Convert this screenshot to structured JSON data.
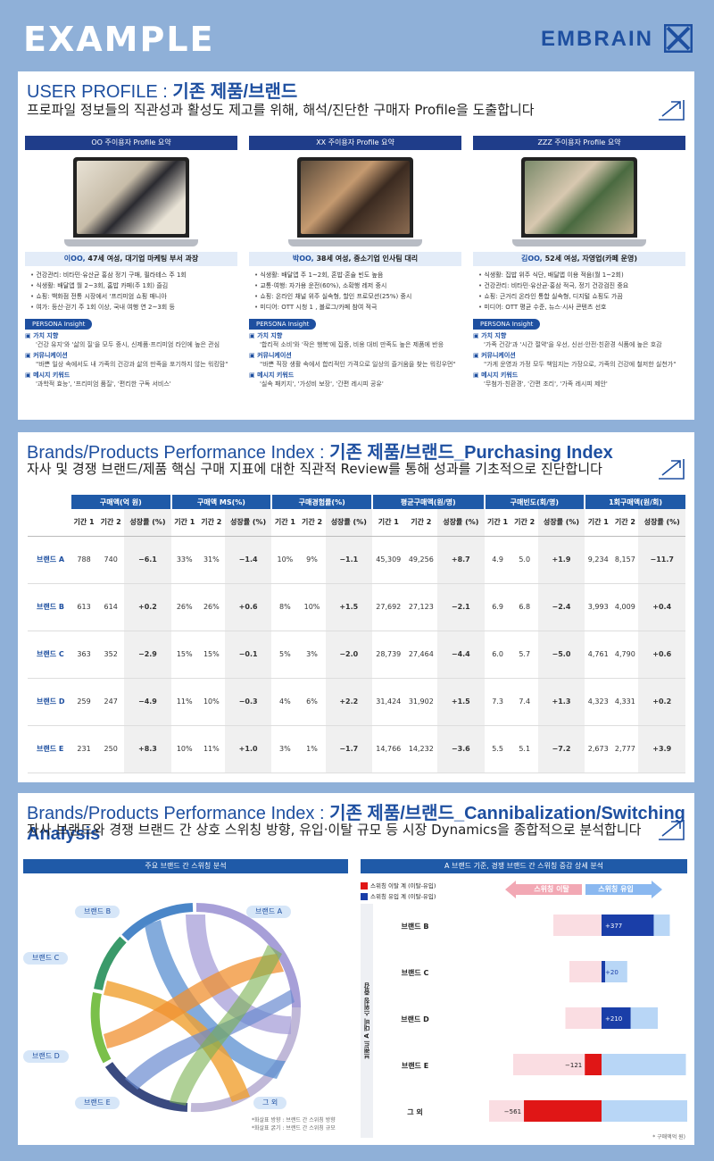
{
  "header": {
    "example": "EXAMPLE",
    "logo": "EMBRAIN"
  },
  "s1": {
    "title_a": "USER PROFILE : ",
    "title_b": "기존 제품/브랜드",
    "subtitle": "프로파일 정보들의 직관성과 활성도 제고를 위해, 해석/진단한 구매자 Profile을 도출합니다",
    "personas": [
      {
        "header": "OO 주이용자 Profile 요약",
        "name_prefix": "이OO, ",
        "name_rest": "47세 여성, 대기업 마케팅 부서 과장",
        "bullets": [
          "건강관리: 비타민·유산균 홍삼 정기 구매, 필라테스 주 1회",
          "식생활: 배달앱 월 2~3회, 홈밥 카페(주 1회) 즐김",
          "쇼핑: 백화점 전통 시장에서 '프리미엄 쇼핑 매니아",
          "여가: 등산·걷기 주 1회 이상, 국내 여행 연 2~3회 등"
        ],
        "insight": "PERSONA Insight",
        "k1_h": "가치 지향",
        "k1_t": "'건강 유지'와 '삶의 질'을 모두 중시, 신제품·프리미엄 라인에 높은 관심",
        "k2_h": "커뮤니케이션",
        "k2_t": "\"바쁜 일상 속에서도 내 가족의 건강과 삶의 만족을 포기하지 않는 워킹맘\"",
        "k3_h": "메시지 키워드",
        "k3_t": "'과학적 효능', '프리미엄 품질', '편리한 구독 서비스'"
      },
      {
        "header": "XX 주이용자 Profile 요약",
        "name_prefix": "박OO, ",
        "name_rest": "38세 여성, 중소기업 인사팀 대리",
        "bullets": [
          "식생활: 배달앱 주 1~2회, 혼밥·혼술 빈도 높음",
          "교통·여행: 자가용 운전(60%), 소확행 레저 중시",
          "쇼핑: 온라인 채널 위주 실속형, 할인 프로모션(25%) 중시",
          "미디어: OTT 시청 1 , 블로그/카페 참여 적극"
        ],
        "insight": "PERSONA Insight",
        "k1_h": "가치 지향",
        "k1_t": "'합리적 소비'와 '작은 행복'에 집중, 비용 대비 만족도 높은 제품에 반응",
        "k2_h": "커뮤니케이션",
        "k2_t": "\"바쁜 직장 생활 속에서 합리적인 가격으로 일상의 즐거움을 찾는 워킹우먼\"",
        "k3_h": "메시지 키워드",
        "k3_t": "'실속 패키지', '가성비 보장', '간편 레시피 공유'"
      },
      {
        "header": "ZZZ 주이용자 Profile 요약",
        "name_prefix": "김OO, ",
        "name_rest": "52세 여성, 자영업(카페 운영)",
        "bullets": [
          "식생활: 집밥 위주 식단, 배달앱 이용 적음(월 1~2회)",
          "건강관리: 비타민·유산균·홍삼 적극, 정기 건강검진 중요",
          "쇼핑: 근거리 온라인 통합 실속형, 디지털 쇼핑도 가끔",
          "미디어: OTT 평균 수준, 뉴스·시사 콘텐츠 선호"
        ],
        "insight": "PERSONA Insight",
        "k1_h": "가치 지향",
        "k1_t": "'가족 건강'과 '시간 절약'을 우선, 신선·안전·친환경 식품에 높은 호감",
        "k2_h": "커뮤니케이션",
        "k2_t": "\"가게 운영과 가정 모두 책임지는 가장으로, 가족의 건강에 철저한 실천가\"",
        "k3_h": "메시지 키워드",
        "k3_t": "'무첨가·친환경', '간편 조리', '가족 레시피 제안'"
      }
    ]
  },
  "s2": {
    "title_a": "Brands/Products Performance Index : ",
    "title_b": "기존 제품/브랜드_Purchasing Index",
    "subtitle": "자사 및 경쟁 브랜드/제품 핵심 구매 지표에 대한 직관적 Review를 통해 성과를 기초적으로 진단합니다",
    "groups": [
      "구매액(억 원)",
      "구매액 MS(%)",
      "구매경험률(%)",
      "평균구매액(원/명)",
      "구매빈도(회/명)",
      "1회구매액(원/회)"
    ],
    "subcols": [
      "기간 1",
      "기간 2",
      "성장률 (%)"
    ],
    "rows": [
      {
        "brand": "브랜드 A",
        "v": [
          "788",
          "740",
          "−6.1",
          "33%",
          "31%",
          "−1.4",
          "10%",
          "9%",
          "−1.1",
          "45,309",
          "49,256",
          "+8.7",
          "4.9",
          "5.0",
          "+1.9",
          "9,234",
          "8,157",
          "−11.7"
        ]
      },
      {
        "brand": "브랜드 B",
        "v": [
          "613",
          "614",
          "+0.2",
          "26%",
          "26%",
          "+0.6",
          "8%",
          "10%",
          "+1.5",
          "27,692",
          "27,123",
          "−2.1",
          "6.9",
          "6.8",
          "−2.4",
          "3,993",
          "4,009",
          "+0.4"
        ]
      },
      {
        "brand": "브랜드 C",
        "v": [
          "363",
          "352",
          "−2.9",
          "15%",
          "15%",
          "−0.1",
          "5%",
          "3%",
          "−2.0",
          "28,739",
          "27,464",
          "−4.4",
          "6.0",
          "5.7",
          "−5.0",
          "4,761",
          "4,790",
          "+0.6"
        ]
      },
      {
        "brand": "브랜드 D",
        "v": [
          "259",
          "247",
          "−4.9",
          "11%",
          "10%",
          "−0.3",
          "4%",
          "6%",
          "+2.2",
          "31,424",
          "31,902",
          "+1.5",
          "7.3",
          "7.4",
          "+1.3",
          "4,323",
          "4,331",
          "+0.2"
        ]
      },
      {
        "brand": "브랜드 E",
        "v": [
          "231",
          "250",
          "+8.3",
          "10%",
          "11%",
          "+1.0",
          "3%",
          "1%",
          "−1.7",
          "14,766",
          "14,232",
          "−3.6",
          "5.5",
          "5.1",
          "−7.2",
          "2,673",
          "2,777",
          "+3.9"
        ]
      }
    ]
  },
  "s3": {
    "title_a": "Brands/Products Performance Index : ",
    "title_b": "기존 제품/브랜드_Cannibalization/Switching Analysis",
    "subtitle": "자사 브랜드와 경쟁 브랜드 간 상호 스위칭 방향, 유입·이탈 규모 등 시장 Dynamics을 종합적으로 분석합니다",
    "left_header": "주요 브랜드 간 스위칭 분석",
    "right_header": "A 브랜드 기준, 경쟁 브랜드 간 스위칭 증감 상세 분석",
    "chord_labels": [
      "브랜드 B",
      "브랜드 A",
      "브랜드 C",
      "브랜드 D",
      "브랜드 E",
      "그 외"
    ],
    "chord_note1": "*화살표 방향 : 브랜드 간 스위칭 방향",
    "chord_note2": "*화살표 굵기 : 브랜드 간 스위칭 규모",
    "legend_out": "스위칭 이탈 계 (이탈-유입)",
    "legend_in": "스위칭 유입 계 (이탈-유입)",
    "arrow_out": "스위칭 이탈",
    "arrow_in": "스위칭 유입",
    "axis_label": "브랜드 A 대비 스위칭 증감",
    "note": "* 구매액억 원)",
    "colors": {
      "out": "#e01616",
      "in": "#1a3ea8"
    },
    "bars": [
      {
        "brand": "브랜드 B",
        "net": 377,
        "label": "+377",
        "out_total": 60,
        "in_total": 85
      },
      {
        "brand": "브랜드 C",
        "net": 20,
        "label": "+20",
        "out_total": 40,
        "in_total": 32
      },
      {
        "brand": "브랜드 D",
        "net": 210,
        "label": "+210",
        "out_total": 45,
        "in_total": 70
      },
      {
        "brand": "브랜드 E",
        "net": -121,
        "label": "−121",
        "out_total": 110,
        "in_total": 105
      },
      {
        "brand": "그 외",
        "net": -561,
        "label": "−561",
        "out_total": 140,
        "in_total": 115
      }
    ]
  }
}
